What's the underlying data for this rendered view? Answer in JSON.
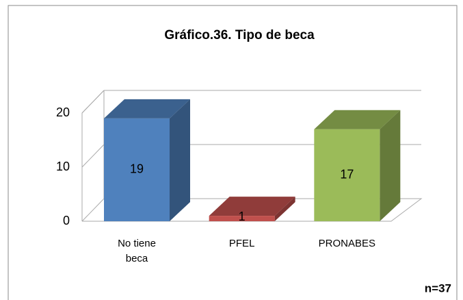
{
  "chart_data": {
    "type": "bar3d",
    "title": "Gráfico.36. Tipo de beca",
    "categories": [
      "No tiene beca",
      "PFEL",
      "PRONABES"
    ],
    "series": [
      {
        "values": [
          19,
          1,
          17
        ],
        "colors": [
          "#4f81bd",
          "#c0504d",
          "#9bbb59"
        ]
      }
    ],
    "ylim": [
      0,
      20
    ],
    "yticks": [
      0,
      10,
      20
    ],
    "grid": true,
    "annotation": "n=37"
  }
}
